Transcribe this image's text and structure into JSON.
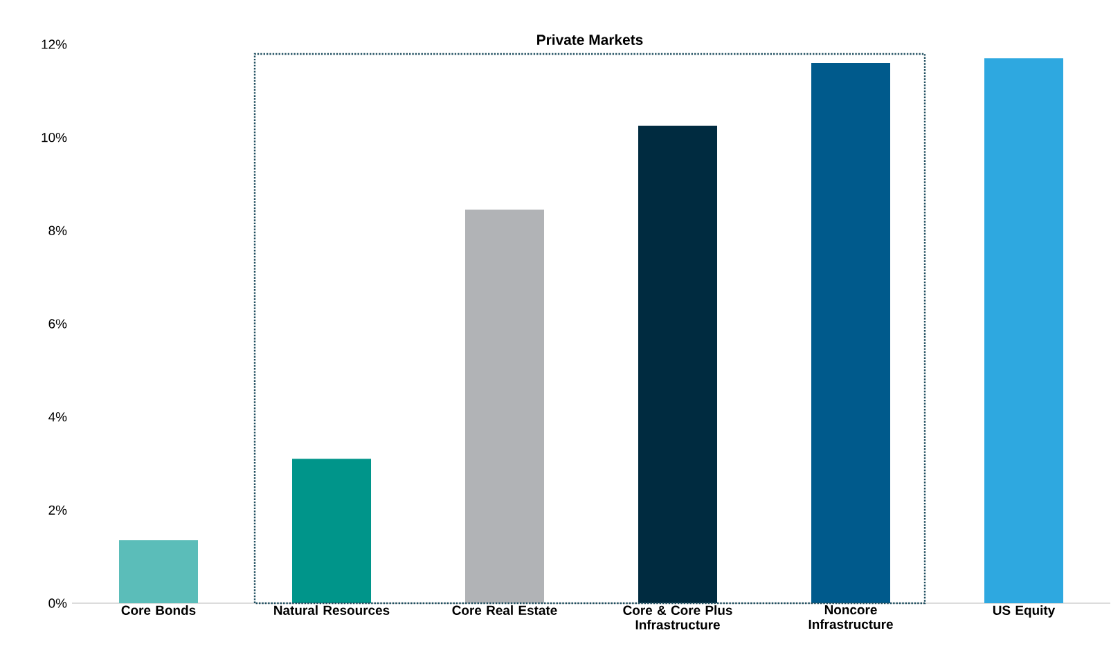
{
  "chart_data": {
    "type": "bar",
    "categories": [
      "Core Bonds",
      "Natural Resources",
      "Core Real Estate",
      "Core & Core Plus Infrastructure",
      "Noncore Infrastructure",
      "US Equity"
    ],
    "values": [
      1.35,
      3.1,
      8.45,
      10.25,
      11.6,
      11.7
    ],
    "colors": [
      "#5bbdb9",
      "#00958a",
      "#b1b3b6",
      "#002b40",
      "#005a8c",
      "#2ea8e0"
    ],
    "ylim": [
      0,
      12
    ],
    "yticks": [
      {
        "value": 0,
        "label": "0%"
      },
      {
        "value": 2,
        "label": "2%"
      },
      {
        "value": 4,
        "label": "4%"
      },
      {
        "value": 6,
        "label": "6%"
      },
      {
        "value": 8,
        "label": "8%"
      },
      {
        "value": 10,
        "label": "10%"
      },
      {
        "value": 12,
        "label": "12%"
      }
    ],
    "annotations": [
      "Private Markets"
    ]
  }
}
